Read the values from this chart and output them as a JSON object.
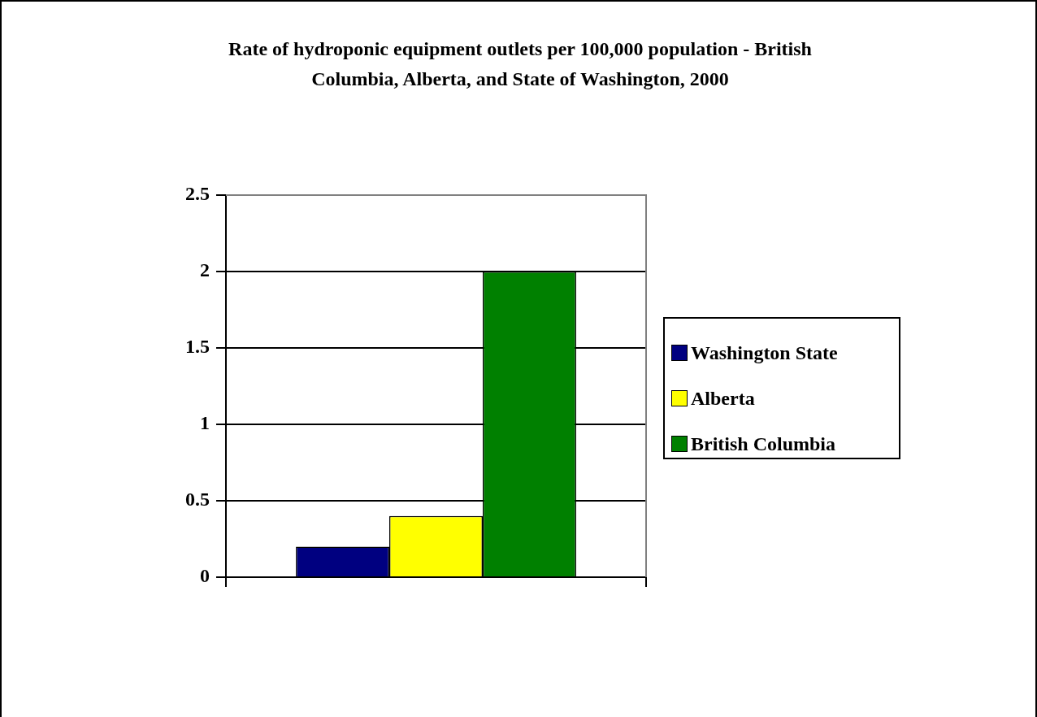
{
  "chart_data": {
    "type": "bar",
    "title": "Rate of hydroponic equipment outlets per 100,000 population - British Columbia, Alberta, and State of Washington, 2000",
    "categories": [
      null
    ],
    "series": [
      {
        "name": "Washington State",
        "color": "#000080",
        "values": [
          0.2
        ]
      },
      {
        "name": "Alberta",
        "color": "#ffff00",
        "values": [
          0.4
        ]
      },
      {
        "name": "British Columbia",
        "color": "#008000",
        "values": [
          2.0
        ]
      }
    ],
    "ylim": [
      0,
      2.5
    ],
    "yticks": [
      0,
      0.5,
      1,
      1.5,
      2,
      2.5
    ],
    "grid": "y",
    "legend": "right"
  }
}
